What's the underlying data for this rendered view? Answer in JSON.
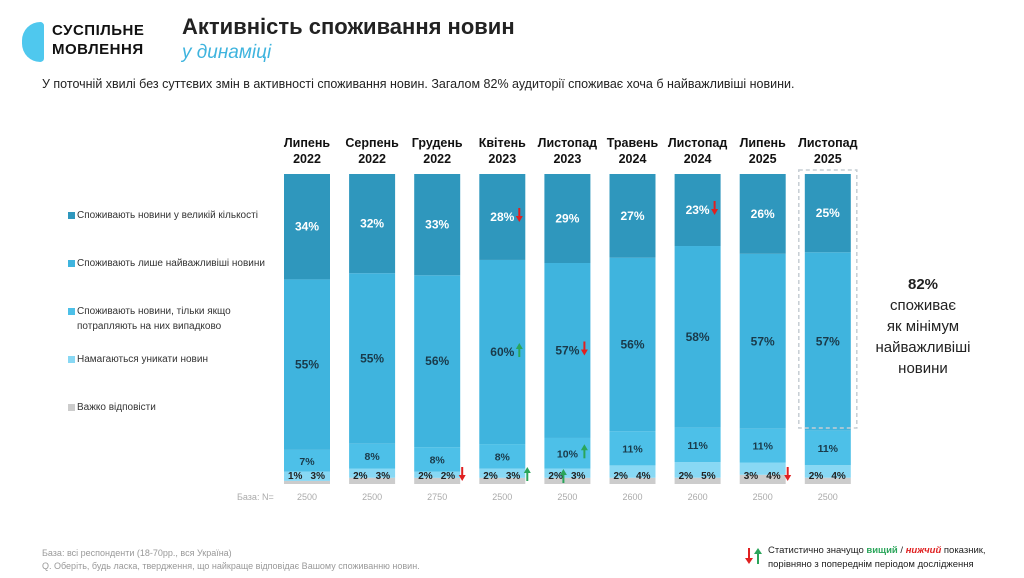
{
  "header": {
    "logo_line1": "СУСПІЛЬНЕ",
    "logo_line2": "МОВЛЕННЯ",
    "title": "Активність споживання новин",
    "subtitle": "у динаміці",
    "lead": "У поточній хвилі без суттєвих змін в активності споживання новин. Загалом 82% аудиторії споживає хоча б найважливіші новини."
  },
  "legend": [
    {
      "label": "Споживають новини у великій кількості",
      "color": "#2f97bd"
    },
    {
      "label": "Споживають лише найважливіші новини",
      "color": "#3fb4de"
    },
    {
      "label": "Споживають новини, тільки якщо потрапляють на них випадково",
      "color": "#4dc0e8"
    },
    {
      "label": "Намагаються уникати новин",
      "color": "#88d8f4"
    },
    {
      "label": "Важко відповісти",
      "color": "#cccccc"
    }
  ],
  "base_label": "База: N=",
  "note": {
    "value": "82%",
    "text_lines": [
      "споживає",
      "як мінімум",
      "найважливіші",
      "новини"
    ]
  },
  "footer": {
    "line1": "База: всі респонденти (18-70рр., вся Україна)",
    "line2": "Q. Оберіть, будь ласка, твердження, що найкраще відповідає Вашому споживанню новин."
  },
  "sig_legend": {
    "prefix": "Статистично значущо ",
    "higher": "вищий",
    "sep": " / ",
    "lower": "нижчий",
    "suffix": " показник,",
    "line2": "порівняно з попереднім періодом дослідження"
  },
  "chart_data": {
    "type": "bar",
    "stacked": true,
    "categories": [
      [
        "Липень",
        "2022"
      ],
      [
        "Серпень",
        "2022"
      ],
      [
        "Грудень",
        "2022"
      ],
      [
        "Квітень",
        "2023"
      ],
      [
        "Листопад",
        "2023"
      ],
      [
        "Травень",
        "2024"
      ],
      [
        "Листопад",
        "2024"
      ],
      [
        "Липень",
        "2025"
      ],
      [
        "Листопад",
        "2025"
      ]
    ],
    "base_n": [
      "2500",
      "2500",
      "2750",
      "2500",
      "2500",
      "2600",
      "2600",
      "2500",
      "2500"
    ],
    "highlight_index": 8,
    "series": [
      {
        "name": "Важко відповісти",
        "color": "#cccccc",
        "values": [
          1,
          2,
          2,
          2,
          2,
          2,
          2,
          3,
          2
        ],
        "labels": [
          "1%",
          "2%",
          "2%",
          "2%",
          "2%",
          "2%",
          "2%",
          "3%",
          "2%"
        ]
      },
      {
        "name": "Намагаються уникати новин",
        "color": "#88d8f4",
        "values": [
          3,
          3,
          2,
          3,
          3,
          4,
          5,
          4,
          4
        ],
        "labels": [
          "3%",
          "3%",
          "2%",
          "3%",
          "3%",
          "4%",
          "5%",
          "4%",
          "4%"
        ]
      },
      {
        "name": "Споживають новини, тільки якщо потрапляють на них випадково",
        "color": "#4dc0e8",
        "values": [
          7,
          8,
          8,
          8,
          10,
          11,
          11,
          11,
          11
        ],
        "labels": [
          "7%",
          "8%",
          "8%",
          "8%",
          "10%",
          "11%",
          "11%",
          "11%",
          "11%"
        ]
      },
      {
        "name": "Споживають лише найважливіші новини",
        "color": "#3fb4de",
        "values": [
          55,
          55,
          56,
          60,
          57,
          56,
          58,
          57,
          57
        ],
        "labels": [
          "55%",
          "55%",
          "56%",
          "60%",
          "57%",
          "56%",
          "58%",
          "57%",
          "57%"
        ]
      },
      {
        "name": "Споживають новини у великій кількості",
        "color": "#2f97bd",
        "values": [
          34,
          32,
          33,
          28,
          29,
          27,
          23,
          26,
          25
        ],
        "labels": [
          "34%",
          "32%",
          "33%",
          "28%",
          "29%",
          "27%",
          "23%",
          "26%",
          "25%"
        ]
      }
    ],
    "significance": [
      {
        "category": 2,
        "series": 1,
        "dir": "down"
      },
      {
        "category": 3,
        "series": 4,
        "dir": "down"
      },
      {
        "category": 3,
        "series": 3,
        "dir": "up"
      },
      {
        "category": 3,
        "series": 1,
        "dir": "up"
      },
      {
        "category": 4,
        "series": 3,
        "dir": "down"
      },
      {
        "category": 4,
        "series": 2,
        "dir": "up"
      },
      {
        "category": 4,
        "series": 0,
        "dir": "up"
      },
      {
        "category": 6,
        "series": 4,
        "dir": "down"
      },
      {
        "category": 7,
        "series": 1,
        "dir": "down"
      }
    ],
    "colors": {
      "up": "#2aa55a",
      "down": "#e02020"
    }
  }
}
